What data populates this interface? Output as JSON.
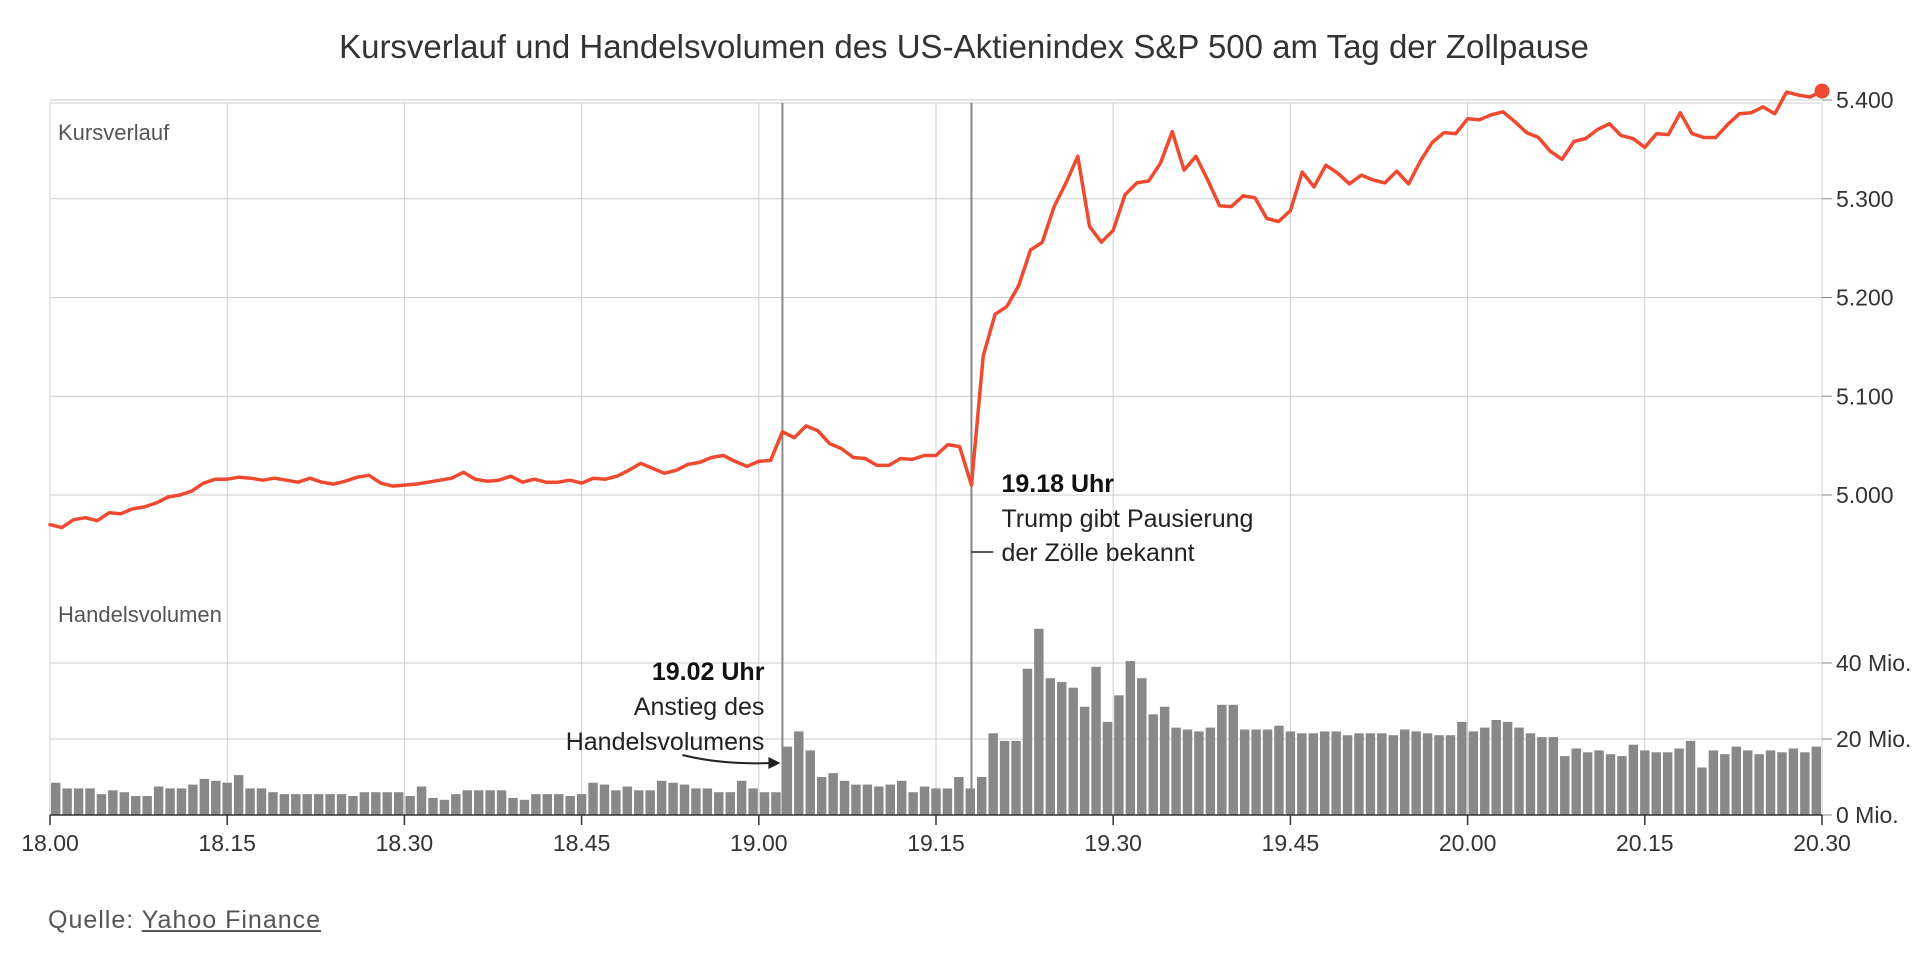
{
  "title": "Kursverlauf und Handelsvolumen des US-Aktienindex S&P 500 am Tag der Zollpause",
  "source": {
    "label": "Quelle:",
    "link_text": "Yahoo Finance"
  },
  "colors": {
    "price_line": "#ef4a30",
    "volume_bars": "#888888",
    "grid": "#cccccc",
    "event_line": "#888888"
  },
  "chart_data": {
    "type": "line",
    "x_tick_labels": [
      "18.00",
      "18.15",
      "18.30",
      "18.45",
      "19.00",
      "19.15",
      "19.30",
      "19.45",
      "20.00",
      "20.15",
      "20.30"
    ],
    "x_unit": "minutes from 18.00",
    "panels": {
      "price": {
        "label": "Kursverlauf",
        "y_ticks": [
          5000,
          5100,
          5200,
          5300,
          5400
        ],
        "y_tick_labels": [
          "5.000",
          "5.100",
          "5.200",
          "5.300",
          "5.400"
        ],
        "ylim": [
          4935,
          5410
        ],
        "values": [
          4970,
          4967,
          4975,
          4977,
          4974,
          4982,
          4981,
          4986,
          4988,
          4992,
          4998,
          5000,
          5004,
          5012,
          5016,
          5016,
          5018,
          5017,
          5015,
          5017,
          5015,
          5013,
          5017,
          5013,
          5011,
          5014,
          5018,
          5020,
          5012,
          5009,
          5010,
          5011,
          5013,
          5015,
          5017,
          5023,
          5016,
          5014,
          5015,
          5019,
          5013,
          5016,
          5013,
          5013,
          5015,
          5012,
          5017,
          5016,
          5019,
          5025,
          5032,
          5027,
          5022,
          5025,
          5031,
          5033,
          5038,
          5040,
          5034,
          5029,
          5034,
          5035,
          5064,
          5058,
          5070,
          5065,
          5052,
          5047,
          5038,
          5037,
          5030,
          5030,
          5037,
          5036,
          5040,
          5040,
          5051,
          5049,
          5010,
          5141,
          5183,
          5191,
          5212,
          5248,
          5256,
          5292,
          5316,
          5343,
          5272,
          5256,
          5268,
          5304,
          5316,
          5318,
          5336,
          5368,
          5329,
          5343,
          5319,
          5293,
          5292,
          5303,
          5301,
          5280,
          5277,
          5288,
          5327,
          5312,
          5334,
          5326,
          5315,
          5324,
          5319,
          5316,
          5328,
          5315,
          5338,
          5357,
          5367,
          5366,
          5381,
          5380,
          5385,
          5388,
          5378,
          5367,
          5362,
          5348,
          5340,
          5358,
          5361,
          5370,
          5376,
          5364,
          5361,
          5352,
          5366,
          5365,
          5387,
          5366,
          5362,
          5362,
          5375,
          5386,
          5387,
          5393,
          5386,
          5408,
          5405,
          5403,
          5409
        ]
      },
      "volume": {
        "label": "Handelsvolumen",
        "unit": "Mio.",
        "y_ticks": [
          0,
          20,
          40
        ],
        "y_tick_labels": [
          "0 Mio.",
          "20 Mio.",
          "40 Mio."
        ],
        "ylim": [
          0,
          58
        ],
        "values": [
          8.5,
          7,
          7,
          7,
          5.5,
          6.5,
          6,
          5,
          5,
          7.5,
          7,
          7,
          8,
          9.5,
          9,
          8.5,
          10.5,
          7,
          7,
          6,
          5.5,
          5.5,
          5.5,
          5.5,
          5.5,
          5.5,
          5,
          6,
          6,
          6,
          6,
          5,
          7.5,
          4.5,
          4,
          5.5,
          6.5,
          6.5,
          6.5,
          6.5,
          4.5,
          4,
          5.5,
          5.5,
          5.5,
          5,
          5.5,
          8.5,
          8,
          6.5,
          7.5,
          6.5,
          6.5,
          9,
          8.5,
          8,
          7,
          7,
          6,
          6,
          9,
          7,
          6,
          6,
          18,
          22,
          17,
          10,
          11,
          9,
          8,
          8,
          7.5,
          8,
          9,
          6,
          7.5,
          7,
          7,
          10,
          7,
          10,
          21.5,
          19.5,
          19.5,
          38.5,
          49,
          36,
          35,
          33.5,
          28.5,
          39,
          24.5,
          31.5,
          40.5,
          36,
          26.5,
          28.5,
          23,
          22.5,
          22,
          23,
          29,
          29,
          22.5,
          22.5,
          22.5,
          23.5,
          22,
          21.5,
          21.5,
          22,
          22,
          21,
          21.5,
          21.5,
          21.5,
          21,
          22.5,
          22,
          21.5,
          21,
          21,
          24.5,
          22,
          23,
          25,
          24.5,
          23,
          21.5,
          20.5,
          20.5,
          15.5,
          17.5,
          16.5,
          17,
          16,
          15.5,
          18.5,
          17,
          16.5,
          16.5,
          17.5,
          19.5,
          12.5,
          17,
          16,
          18,
          17,
          16,
          17,
          16.5,
          17.5,
          16.5,
          18
        ]
      }
    },
    "events": [
      {
        "x": 62,
        "time": "19.02 Uhr",
        "lines": [
          "Anstieg des",
          "Handelsvolumens"
        ]
      },
      {
        "x": 78,
        "time": "19.18 Uhr",
        "lines": [
          "Trump gibt Pausierung",
          "der Zölle bekannt"
        ]
      }
    ]
  }
}
